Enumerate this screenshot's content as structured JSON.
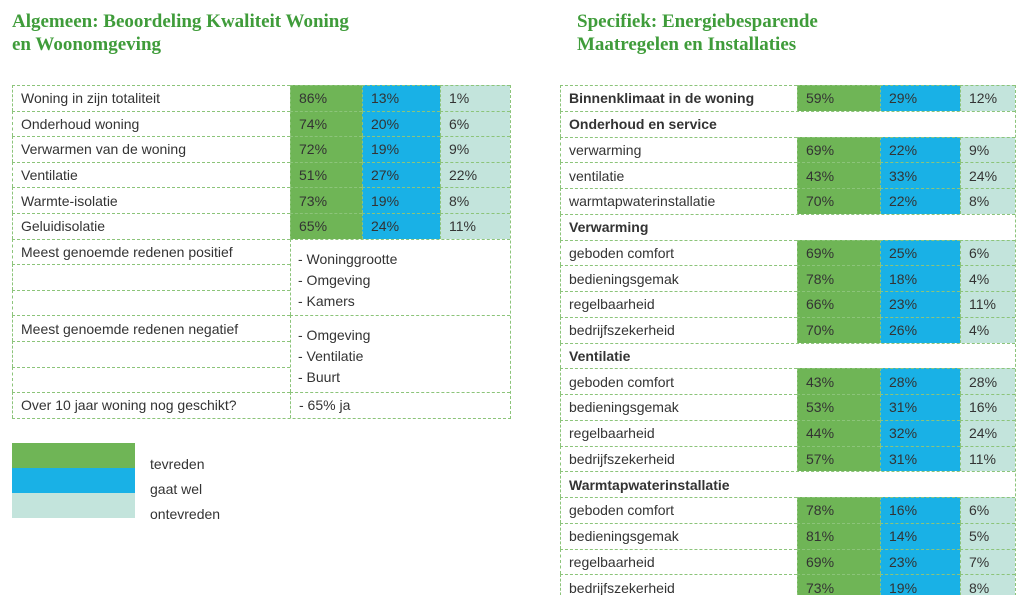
{
  "left": {
    "title_line1": "Algemeen: Beoordeling Kwaliteit Woning",
    "title_line2": "en Woonomgeving",
    "rows": [
      {
        "label": "Woning in zijn totaliteit",
        "values": [
          "86%",
          "13%",
          "1%"
        ]
      },
      {
        "label": "Onderhoud woning",
        "values": [
          "74%",
          "20%",
          "6%"
        ]
      },
      {
        "label": "Verwarmen van de woning",
        "values": [
          "72%",
          "19%",
          "9%"
        ]
      },
      {
        "label": "Ventilatie",
        "values": [
          "51%",
          "27%",
          "22%"
        ]
      },
      {
        "label": "Warmte-isolatie",
        "values": [
          "73%",
          "19%",
          "8%"
        ]
      },
      {
        "label": "Geluidisolatie",
        "values": [
          "65%",
          "24%",
          "11%"
        ]
      }
    ],
    "reasons": [
      {
        "label": "Meest genoemde redenen positief",
        "items": [
          "- Woninggrootte",
          "- Omgeving",
          "- Kamers"
        ]
      },
      {
        "label": "Meest genoemde redenen negatief",
        "items": [
          "- Omgeving",
          "- Ventilatie",
          "- Buurt"
        ]
      }
    ],
    "future": {
      "label": "Over 10 jaar woning nog geschikt?",
      "answer": "- 65% ja"
    },
    "legend": [
      "tevreden",
      "gaat wel",
      "ontevreden"
    ]
  },
  "right": {
    "title_line1": "Specifiek: Energiebesparende",
    "title_line2": "Maatregelen en Installaties",
    "rows": [
      {
        "label": "Binnenklimaat in de woning",
        "values": [
          "59%",
          "29%",
          "12%"
        ]
      },
      {
        "label": "Onderhoud en service"
      },
      {
        "label": "verwarming",
        "values": [
          "69%",
          "22%",
          "9%"
        ]
      },
      {
        "label": "ventilatie",
        "values": [
          "43%",
          "33%",
          "24%"
        ]
      },
      {
        "label": "warmtapwaterinstallatie",
        "values": [
          "70%",
          "22%",
          "8%"
        ]
      },
      {
        "label": "Verwarming"
      },
      {
        "label": "geboden comfort",
        "values": [
          "69%",
          "25%",
          "6%"
        ]
      },
      {
        "label": "bedieningsgemak",
        "values": [
          "78%",
          "18%",
          "4%"
        ]
      },
      {
        "label": "regelbaarheid",
        "values": [
          "66%",
          "23%",
          "11%"
        ]
      },
      {
        "label": "bedrijfszekerheid",
        "values": [
          "70%",
          "26%",
          "4%"
        ]
      },
      {
        "label": "Ventilatie"
      },
      {
        "label": "geboden comfort",
        "values": [
          "43%",
          "28%",
          "28%"
        ]
      },
      {
        "label": "bedieningsgemak",
        "values": [
          "53%",
          "31%",
          "16%"
        ]
      },
      {
        "label": "regelbaarheid",
        "values": [
          "44%",
          "32%",
          "24%"
        ]
      },
      {
        "label": "bedrijfszekerheid",
        "values": [
          "57%",
          "31%",
          "11%"
        ]
      },
      {
        "label": "Warmtapwaterinstallatie"
      },
      {
        "label": "geboden comfort",
        "values": [
          "78%",
          "16%",
          "6%"
        ]
      },
      {
        "label": "bedieningsgemak",
        "values": [
          "81%",
          "14%",
          "5%"
        ]
      },
      {
        "label": "regelbaarheid",
        "values": [
          "69%",
          "23%",
          "7%"
        ]
      },
      {
        "label": "bedrijfszekerheid",
        "values": [
          "73%",
          "19%",
          "8%"
        ]
      }
    ]
  }
}
